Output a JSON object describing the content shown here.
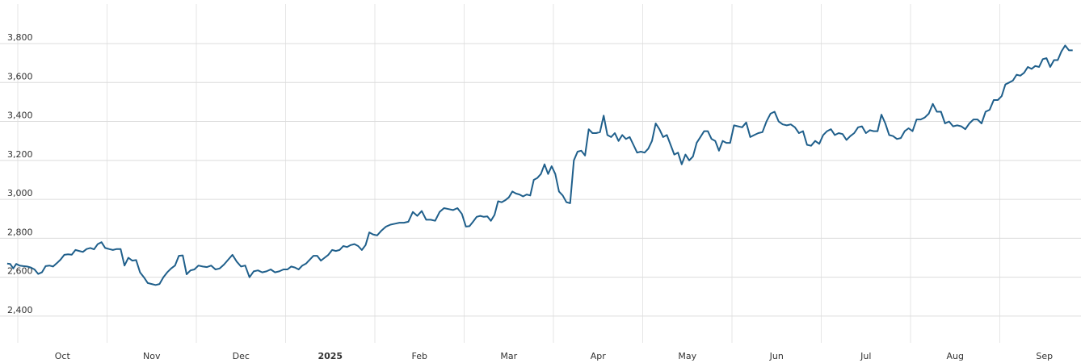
{
  "chart_data": {
    "type": "line",
    "categories": [
      null,
      "Oct",
      "Nov",
      "Dec",
      "2025",
      "Feb",
      "Mar",
      "Apr",
      "May",
      "Jun",
      "Jul",
      "Aug",
      "Sep"
    ],
    "series": [
      {
        "color": "#1f5f8b",
        "values": [
          [
            2670,
            2668,
            2645,
            2668
          ],
          [
            2660,
            2657,
            2655,
            2650,
            2640,
            2617,
            2625,
            2657,
            2660,
            2655,
            2672,
            2690,
            2715,
            2718,
            2716,
            2740,
            2735,
            2730,
            2745,
            2750,
            2743,
            2770,
            2780,
            2750
          ],
          [
            2745,
            2740,
            2745,
            2745,
            2660,
            2700,
            2685,
            2688,
            2625,
            2600,
            2570,
            2565,
            2560,
            2565,
            2600,
            2625,
            2645,
            2660,
            2710,
            2712,
            2615,
            2635,
            2640
          ],
          [
            2660,
            2655,
            2652,
            2660,
            2640,
            2645,
            2665,
            2690,
            2715,
            2680,
            2655,
            2660,
            2600,
            2630,
            2635,
            2625,
            2630,
            2640,
            2625,
            2630,
            2640
          ],
          [
            2640,
            2655,
            2650,
            2640,
            2660,
            2670,
            2690,
            2710,
            2710,
            2685,
            2700,
            2715,
            2740,
            2735,
            2740,
            2760,
            2755,
            2765,
            2770,
            2760,
            2740,
            2765,
            2830,
            2820
          ],
          [
            2815,
            2840,
            2860,
            2870,
            2875,
            2880,
            2880,
            2885,
            2935,
            2915,
            2940,
            2895,
            2895,
            2890,
            2935,
            2955,
            2950,
            2945,
            2955,
            2925
          ],
          [
            2860,
            2862,
            2885,
            2910,
            2915,
            2910,
            2912,
            2890,
            2920,
            2990,
            2985,
            2995,
            3010,
            3040,
            3030,
            3025,
            3015,
            3025,
            3020,
            3100,
            3110,
            3130,
            3180,
            3130,
            3170
          ],
          [
            3130,
            3040,
            3020,
            2985,
            2980,
            3200,
            3245,
            3250,
            3225,
            3360,
            3340,
            3340,
            3345,
            3430,
            3330,
            3320,
            3340,
            3300,
            3330,
            3310,
            3320,
            3280,
            3240,
            3245
          ],
          [
            3240,
            3260,
            3300,
            3390,
            3360,
            3320,
            3330,
            3280,
            3230,
            3240,
            3180,
            3230,
            3200,
            3220,
            3290,
            3320,
            3350,
            3350,
            3310,
            3300,
            3250,
            3300,
            3290,
            3290
          ],
          [
            3380,
            3375,
            3370,
            3395,
            3320,
            3330,
            3340,
            3345,
            3400,
            3440,
            3450,
            3400,
            3385,
            3380,
            3385,
            3370,
            3340,
            3350,
            3280,
            3275,
            3300,
            3285
          ],
          [
            3330,
            3350,
            3360,
            3330,
            3340,
            3335,
            3305,
            3325,
            3340,
            3370,
            3375,
            3340,
            3355,
            3350,
            3350,
            3435,
            3390,
            3330,
            3325,
            3310,
            3315,
            3350,
            3365
          ],
          [
            3350,
            3410,
            3410,
            3420,
            3440,
            3490,
            3450,
            3450,
            3390,
            3400,
            3375,
            3380,
            3375,
            3360,
            3390,
            3410,
            3410,
            3390,
            3450,
            3460,
            3510,
            3510
          ],
          [
            3530,
            3590,
            3600,
            3610,
            3640,
            3635,
            3650,
            3680,
            3670,
            3685,
            3680,
            3720,
            3725,
            3680,
            3715,
            3715,
            3760,
            3790,
            3765,
            3765
          ]
        ]
      }
    ],
    "ylim": [
      2263,
      4003
    ],
    "yticks": [
      {
        "value": 2400,
        "label": "2,400"
      },
      {
        "value": 2600,
        "label": "2,600"
      },
      {
        "value": 2800,
        "label": "2,800"
      },
      {
        "value": 3000,
        "label": "3,000"
      },
      {
        "value": 3200,
        "label": "3,200"
      },
      {
        "value": 3400,
        "label": "3,400"
      },
      {
        "value": 3600,
        "label": "3,600"
      },
      {
        "value": 3800,
        "label": "3,800"
      }
    ],
    "grid": true
  }
}
